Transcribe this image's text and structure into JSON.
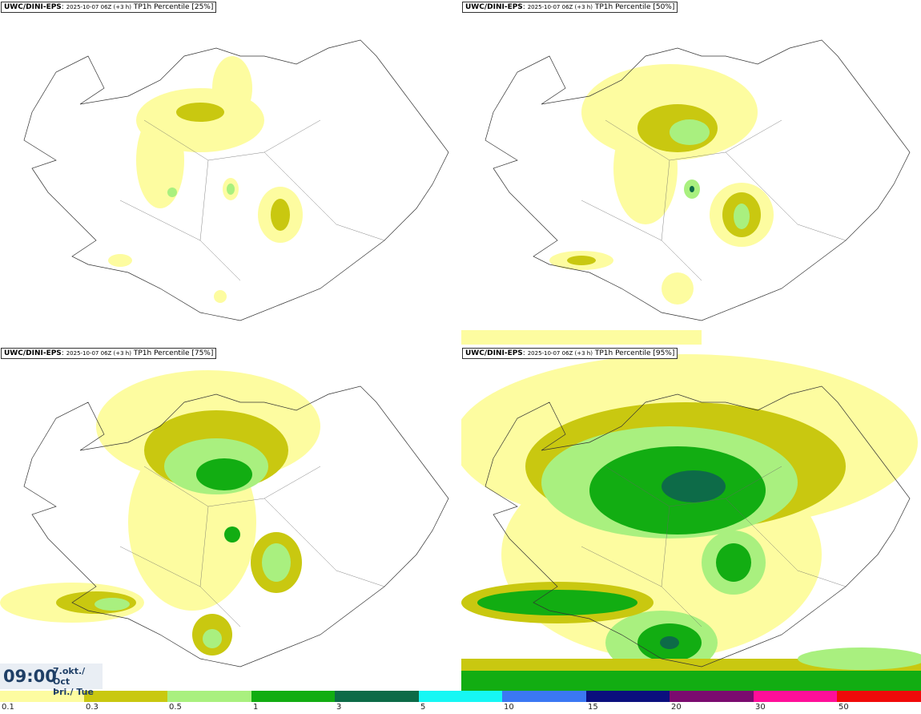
{
  "panels": [
    {
      "model": "UWC/DINI-EPS",
      "run": "2025-10-07 06Z (+3 h)",
      "field": "TP1h Percentile [25%]"
    },
    {
      "model": "UWC/DINI-EPS",
      "run": "2025-10-07 06Z (+3 h)",
      "field": "TP1h Percentile [50%]"
    },
    {
      "model": "UWC/DINI-EPS",
      "run": "2025-10-07 06Z (+3 h)",
      "field": "TP1h Percentile [75%]"
    },
    {
      "model": "UWC/DINI-EPS",
      "run": "2025-10-07 06Z (+3 h)",
      "field": "TP1h Percentile [95%]"
    }
  ],
  "valid_time": {
    "time": "09:00",
    "date": "7.okt./ Oct",
    "weekday": "Þri./ Tue"
  },
  "legend": {
    "colors": [
      "#fdfca0",
      "#c9c810",
      "#a9f07f",
      "#12ad12",
      "#0d6b48",
      "#16f7f4",
      "#3b78f3",
      "#0b0f7e",
      "#7b0b6f",
      "#ff0f99",
      "#f00a0a"
    ],
    "ticks": [
      "0.1",
      "0.3",
      "0.5",
      "1",
      "3",
      "5",
      "10",
      "15",
      "20",
      "30",
      "50"
    ]
  }
}
